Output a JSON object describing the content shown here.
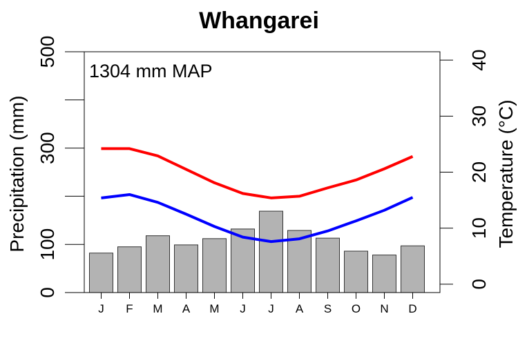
{
  "chart_data": {
    "type": "bar",
    "title": "Whangarei",
    "annotation": "1304 mm MAP",
    "categories": [
      "J",
      "F",
      "M",
      "A",
      "M",
      "J",
      "J",
      "A",
      "S",
      "O",
      "N",
      "D"
    ],
    "precipitation": {
      "ylabel": "Precipitation (mm)",
      "ylim": [
        0,
        500
      ],
      "ticks": [
        0,
        100,
        200,
        300,
        400,
        500
      ],
      "tick_labels": [
        "0",
        "100",
        "",
        "300",
        "",
        "500"
      ],
      "values": [
        82,
        95,
        118,
        99,
        112,
        132,
        169,
        129,
        113,
        86,
        78,
        97
      ],
      "color": "#b3b3b3"
    },
    "temperature": {
      "ylabel": "Temperature (°C)",
      "ylim": [
        -1.5,
        41.5
      ],
      "ticks": [
        0,
        10,
        20,
        30,
        40
      ],
      "tick_labels": [
        "0",
        "10",
        "20",
        "30",
        "40"
      ],
      "series": [
        {
          "values": [
            24.2,
            24.2,
            22.9,
            20.5,
            18.1,
            16.2,
            15.4,
            15.7,
            17.2,
            18.6,
            20.6,
            22.8
          ],
          "color": "#ff0000"
        },
        {
          "values": [
            15.4,
            16.0,
            14.6,
            12.5,
            10.3,
            8.4,
            7.6,
            8.1,
            9.5,
            11.3,
            13.2,
            15.5
          ],
          "color": "#0000ff"
        }
      ]
    }
  }
}
